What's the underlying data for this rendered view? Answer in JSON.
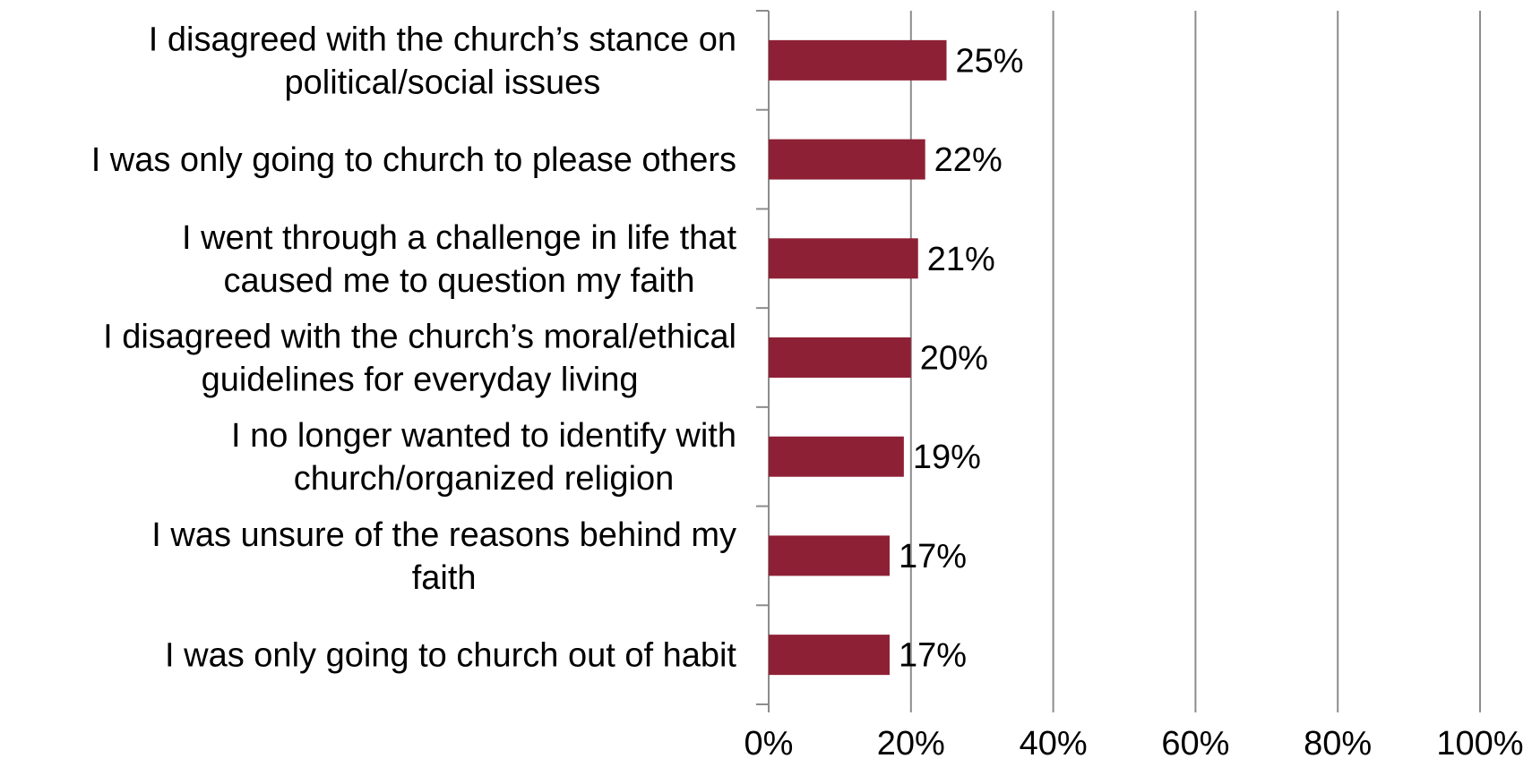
{
  "chart_data": {
    "type": "bar",
    "orientation": "horizontal",
    "title": "",
    "xlabel": "",
    "ylabel": "",
    "categories": [
      [
        "I disagreed with the church’s stance on",
        "political/social issues"
      ],
      [
        "I was only going to church to please others"
      ],
      [
        "I went through a challenge in life that",
        "caused me to question my faith"
      ],
      [
        "I disagreed with the church’s moral/ethical",
        "guidelines for everyday living"
      ],
      [
        "I no longer wanted to identify with",
        "church/organized religion"
      ],
      [
        "I was unsure of the reasons behind my",
        "faith"
      ],
      [
        "I was only going to church out of habit"
      ]
    ],
    "values": [
      25,
      22,
      21,
      20,
      19,
      17,
      17
    ],
    "value_labels": [
      "25%",
      "22%",
      "21%",
      "20%",
      "19%",
      "17%",
      "17%"
    ],
    "xlim": [
      0,
      100
    ],
    "x_ticks": [
      0,
      20,
      40,
      60,
      80,
      100
    ],
    "x_tick_labels": [
      "0%",
      "20%",
      "40%",
      "60%",
      "80%",
      "100%"
    ],
    "grid": "vertical",
    "legend": "none",
    "bar_color": "#8e2035",
    "grid_color": "#8c8c8c"
  }
}
